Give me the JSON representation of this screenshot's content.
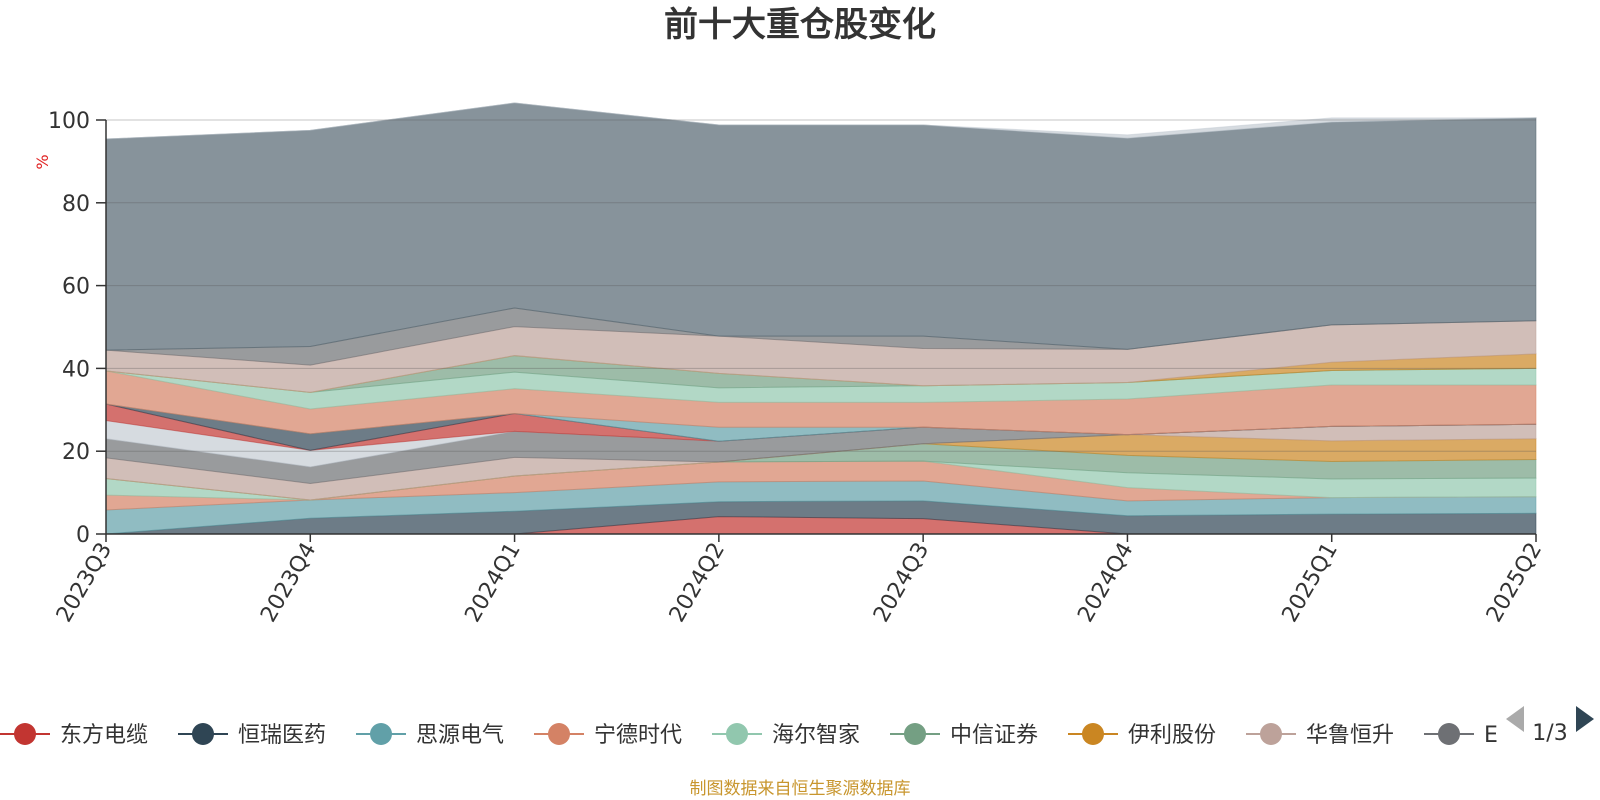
{
  "chart_data": {
    "type": "area",
    "stacked": true,
    "title": "前十大重仓股变化",
    "ylabel": "%",
    "ylim": [
      0,
      100
    ],
    "yticks": [
      "0",
      "20",
      "40",
      "60",
      "80",
      "100"
    ],
    "categories": [
      "2023Q3",
      "2023Q4",
      "2024Q1",
      "2024Q2",
      "2024Q3",
      "2024Q4",
      "2025Q1",
      "2025Q2"
    ],
    "grid": true,
    "legend_position": "bottom",
    "series": [
      {
        "name": "东方电缆",
        "color": "#c23531",
        "values": [
          0,
          0,
          0,
          4.2,
          3.7,
          0,
          0,
          0
        ]
      },
      {
        "name": "恒瑞医药",
        "color": "#2f4554",
        "values": [
          0,
          3.8,
          5.5,
          3.6,
          4.3,
          4.4,
          4.8,
          5.0
        ]
      },
      {
        "name": "思源电气",
        "color": "#61a0a8",
        "values": [
          5.8,
          4.4,
          4.5,
          4.8,
          4.8,
          3.6,
          4.0,
          4.0
        ]
      },
      {
        "name": "宁德时代",
        "color": "#d48265",
        "values": [
          3.6,
          0,
          4.0,
          4.8,
          4.8,
          3.2,
          0,
          0
        ]
      },
      {
        "name": "海尔智家",
        "color": "#91c7ae",
        "values": [
          4.0,
          0,
          0,
          0,
          0,
          3.6,
          4.5,
          4.5
        ]
      },
      {
        "name": "中信证券",
        "color": "#749f83",
        "values": [
          0,
          0,
          0,
          0,
          4.2,
          4.2,
          4.2,
          4.5
        ]
      },
      {
        "name": "伊利股份",
        "color": "#ca8622",
        "values": [
          0,
          0,
          0,
          0,
          0,
          5.0,
          5.0,
          5.0
        ]
      },
      {
        "name": "华鲁恒升",
        "color": "#bda29a",
        "values": [
          5.0,
          4.0,
          4.5,
          0,
          0,
          0,
          3.5,
          3.5
        ]
      },
      {
        "name": "",
        "color": "#6e7074",
        "values": [
          4.6,
          4.0,
          6.3,
          5.0,
          4.0,
          0,
          0,
          0
        ]
      },
      {
        "name": "",
        "color": "#c4ccd3",
        "values": [
          4.4,
          4.0,
          0,
          0,
          0,
          0,
          0,
          0
        ]
      },
      {
        "name": "",
        "color": "#c23531",
        "values": [
          4.0,
          0,
          4.3,
          0,
          0,
          0,
          0,
          0
        ]
      },
      {
        "name": "",
        "color": "#2f4554",
        "values": [
          0,
          4.0,
          0,
          0,
          0,
          0,
          0,
          0
        ]
      },
      {
        "name": "",
        "color": "#61a0a8",
        "values": [
          0,
          0,
          0,
          3.4,
          0,
          0,
          0,
          0
        ]
      },
      {
        "name": "",
        "color": "#d48265",
        "values": [
          8.0,
          6.0,
          6.0,
          6.0,
          6.0,
          8.6,
          10.0,
          9.5
        ]
      },
      {
        "name": "",
        "color": "#91c7ae",
        "values": [
          0,
          4.0,
          4.0,
          3.5,
          4.0,
          4.0,
          3.5,
          4.0
        ]
      },
      {
        "name": "",
        "color": "#749f83",
        "values": [
          0,
          0,
          4.0,
          3.5,
          0,
          0,
          0,
          0
        ]
      },
      {
        "name": "",
        "color": "#ca8622",
        "values": [
          0,
          0,
          0,
          0,
          0,
          0,
          2.0,
          3.5
        ]
      },
      {
        "name": "",
        "color": "#bda29a",
        "values": [
          5.0,
          6.6,
          7.0,
          9.0,
          9.0,
          8.0,
          9.0,
          8.0
        ]
      },
      {
        "name": "",
        "color": "#6e7074",
        "values": [
          0,
          4.5,
          4.5,
          0,
          3.0,
          0,
          0,
          0
        ]
      },
      {
        "name": "",
        "color": "#546570",
        "values": [
          51.0,
          52.2,
          49.5,
          51.0,
          51.0,
          51.0,
          49.0,
          49.0
        ]
      },
      {
        "name": "",
        "color": "#c4ccd3",
        "values": [
          0,
          0,
          0,
          0,
          0,
          0.8,
          1.0,
          0
        ]
      }
    ],
    "legend": [
      "东方电缆",
      "恒瑞医药",
      "思源电气",
      "宁德时代",
      "海尔智家",
      "中信证券",
      "伊利股份",
      "华鲁恒升",
      "E"
    ],
    "legend_colors": [
      "#c23531",
      "#2f4554",
      "#61a0a8",
      "#d48265",
      "#91c7ae",
      "#749f83",
      "#ca8622",
      "#bda29a",
      "#6e7074"
    ]
  },
  "legend_pager": {
    "text": "1/3",
    "prev_icon": "triangle-left-icon",
    "next_icon": "triangle-right-icon"
  },
  "footer": {
    "source": "制图数据来自恒生聚源数据库"
  }
}
